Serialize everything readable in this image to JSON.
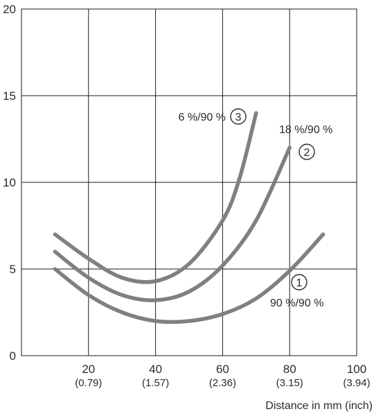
{
  "chart_data": {
    "type": "line",
    "xlabel": "Distance in mm (inch)",
    "ylabel": "",
    "xlim": [
      0,
      100
    ],
    "ylim": [
      0,
      20
    ],
    "grid": true,
    "x_ticks": [
      {
        "value": 20,
        "label": "20",
        "sub": "(0.79)"
      },
      {
        "value": 40,
        "label": "40",
        "sub": "(1.57)"
      },
      {
        "value": 60,
        "label": "60",
        "sub": "(2.36)"
      },
      {
        "value": 80,
        "label": "80",
        "sub": "(3.15)"
      },
      {
        "value": 100,
        "label": "100",
        "sub": "(3.94)"
      }
    ],
    "y_ticks": [
      {
        "value": 0,
        "label": "0"
      },
      {
        "value": 5,
        "label": "5"
      },
      {
        "value": 10,
        "label": "10"
      },
      {
        "value": 15,
        "label": "15"
      },
      {
        "value": 20,
        "label": "20"
      }
    ],
    "series": [
      {
        "id": "series-1",
        "marker": "1",
        "label": "90 %/90 %",
        "x": [
          10,
          20,
          30,
          40,
          50,
          60,
          70,
          80,
          90
        ],
        "y": [
          5.0,
          3.5,
          2.5,
          2.0,
          2.0,
          2.4,
          3.3,
          4.9,
          7.0
        ]
      },
      {
        "id": "series-2",
        "marker": "2",
        "label": "18 %/90 %",
        "x": [
          10,
          20,
          30,
          40,
          50,
          60,
          70,
          80
        ],
        "y": [
          6.0,
          4.5,
          3.5,
          3.2,
          3.7,
          5.2,
          7.8,
          12.0
        ]
      },
      {
        "id": "series-3",
        "marker": "3",
        "label": "6 %/90 %",
        "x": [
          10,
          20,
          30,
          40,
          50,
          60,
          65,
          70
        ],
        "y": [
          7.0,
          5.6,
          4.5,
          4.3,
          5.3,
          7.8,
          10.2,
          14.0
        ]
      }
    ]
  }
}
